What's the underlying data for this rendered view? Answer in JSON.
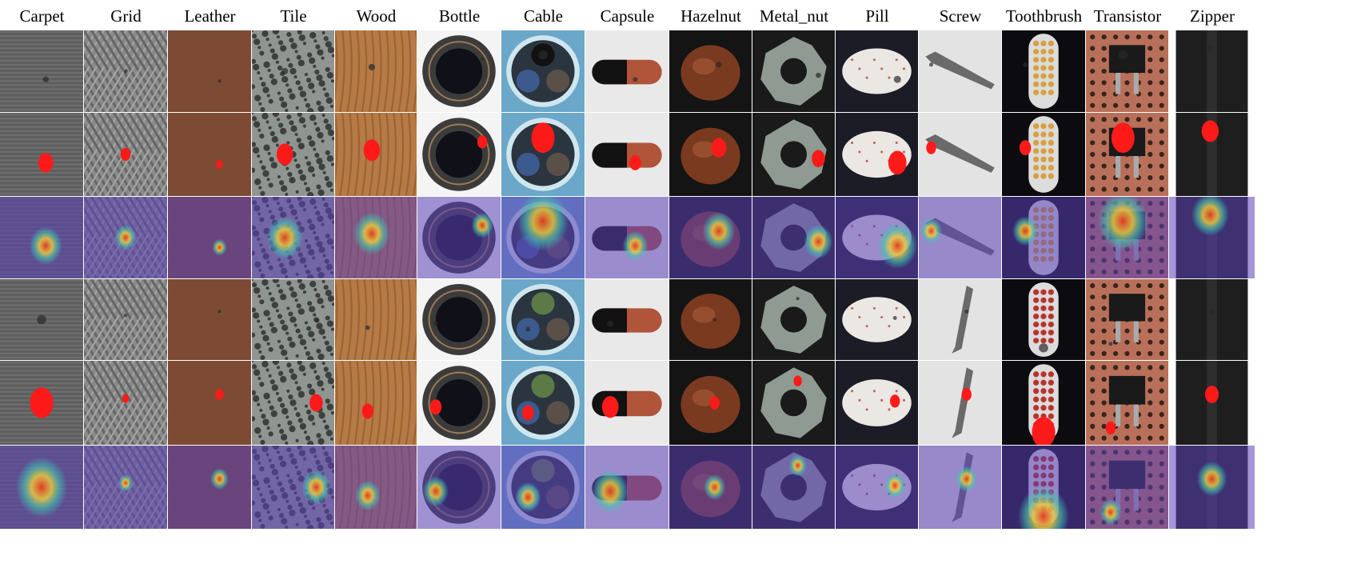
{
  "categories": [
    "Carpet",
    "Grid",
    "Leather",
    "Tile",
    "Wood",
    "Bottle",
    "Cable",
    "Capsule",
    "Hazelnut",
    "Metal_nut",
    "Pill",
    "Screw",
    "Toothbrush",
    "Transistor",
    "Zipper"
  ],
  "rows": [
    {
      "kind": "image",
      "group": "sample-1"
    },
    {
      "kind": "mask",
      "group": "sample-1"
    },
    {
      "kind": "heatmap",
      "group": "sample-1"
    },
    {
      "kind": "image",
      "group": "sample-2"
    },
    {
      "kind": "mask",
      "group": "sample-2"
    },
    {
      "kind": "heatmap",
      "group": "sample-2"
    }
  ],
  "colors": {
    "mask": "#ff1a1a",
    "heatmap_low": "#5b3fb8",
    "heatmap_mid": "#3fc7b0",
    "heatmap_high": "#e63a1f"
  }
}
